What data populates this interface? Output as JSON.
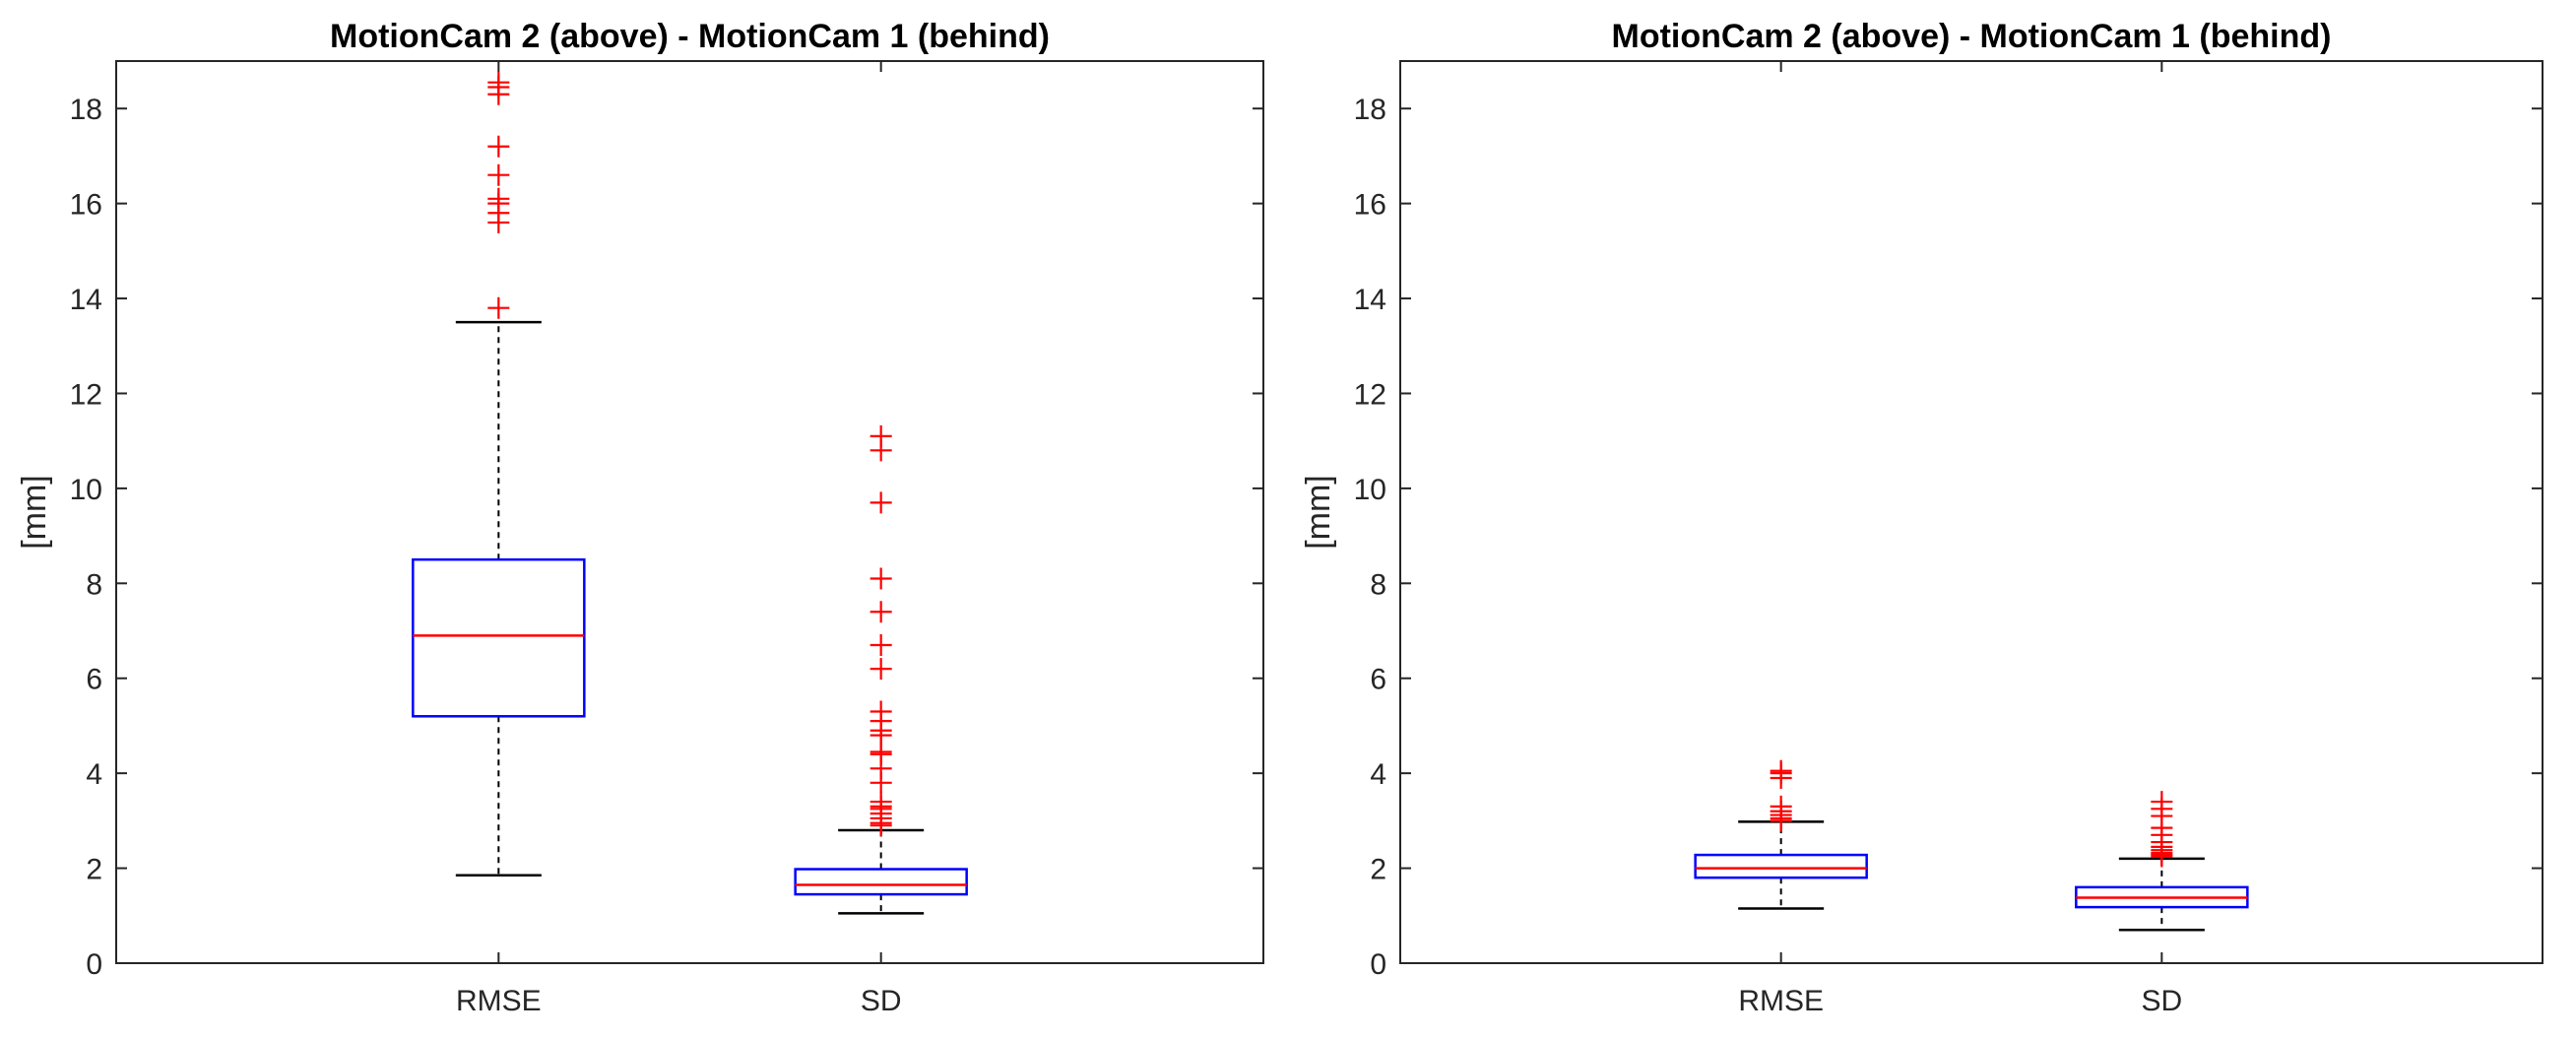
{
  "chart_data": [
    {
      "type": "boxplot",
      "title": "MotionCam 2 (above) - MotionCam 1 (behind)",
      "xlabel": "",
      "ylabel": "[mm]",
      "ylim": [
        0,
        19
      ],
      "yticks": [
        0,
        2,
        4,
        6,
        8,
        10,
        12,
        14,
        16,
        18
      ],
      "grid": false,
      "categories": [
        "RMSE",
        "SD"
      ],
      "boxes": [
        {
          "label": "RMSE",
          "whisker_low": 1.85,
          "q1": 5.2,
          "median": 6.9,
          "q3": 8.5,
          "whisker_high": 13.5,
          "outliers": [
            13.8,
            15.6,
            15.8,
            16.0,
            16.1,
            16.6,
            17.2,
            18.3,
            18.45,
            18.55
          ]
        },
        {
          "label": "SD",
          "whisker_low": 1.05,
          "q1": 1.45,
          "median": 1.65,
          "q3": 1.98,
          "whisker_high": 2.8,
          "outliers": [
            2.9,
            2.95,
            3.05,
            3.15,
            3.25,
            3.3,
            3.4,
            3.8,
            4.1,
            4.4,
            4.45,
            4.8,
            4.9,
            5.1,
            5.3,
            6.2,
            6.7,
            7.4,
            8.1,
            9.7,
            10.8,
            11.1
          ]
        }
      ]
    },
    {
      "type": "boxplot",
      "title": "MotionCam 2 (above) - MotionCam 1 (behind)",
      "xlabel": "",
      "ylabel": "[mm]",
      "ylim": [
        0,
        19
      ],
      "yticks": [
        0,
        2,
        4,
        6,
        8,
        10,
        12,
        14,
        16,
        18
      ],
      "grid": false,
      "categories": [
        "RMSE",
        "SD"
      ],
      "boxes": [
        {
          "label": "RMSE",
          "whisker_low": 1.15,
          "q1": 1.8,
          "median": 2.0,
          "q3": 2.28,
          "whisker_high": 2.98,
          "outliers": [
            3.0,
            3.05,
            3.12,
            3.2,
            3.3,
            3.9,
            4.0,
            4.05
          ]
        },
        {
          "label": "SD",
          "whisker_low": 0.7,
          "q1": 1.18,
          "median": 1.38,
          "q3": 1.6,
          "whisker_high": 2.2,
          "outliers": [
            2.25,
            2.28,
            2.32,
            2.38,
            2.45,
            2.55,
            2.7,
            2.85,
            3.1,
            3.25,
            3.4
          ]
        }
      ]
    }
  ],
  "colors": {
    "box": "#0000ff",
    "median": "#ff0000",
    "outlier": "#ff0000",
    "whisker": "#000000",
    "axis": "#262626"
  }
}
